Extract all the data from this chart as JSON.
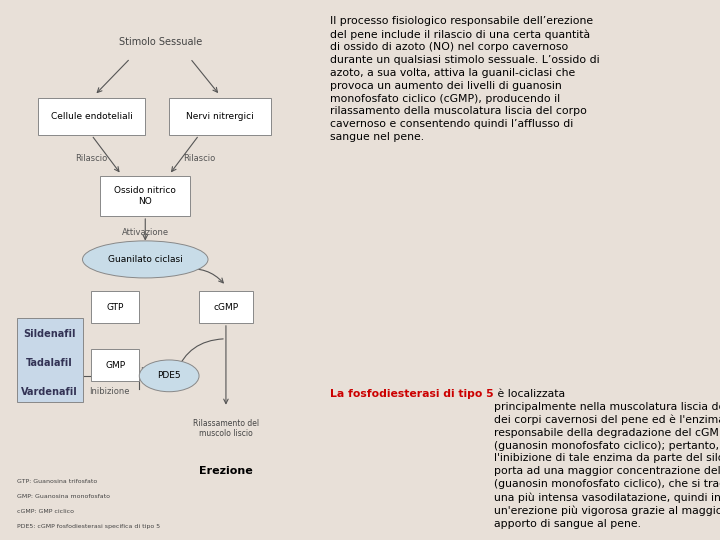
{
  "bg_color": "#e8e0d8",
  "left_bg": "#d4cfc8",
  "right_bg": "#f5e8e0",
  "diagram_title": "Stimolo Sessuale",
  "box1": "Cellule endoteliali",
  "box2": "Nervi nitrergici",
  "label_rilascio1": "Rilascio",
  "label_rilascio2": "Rilascio",
  "box_no": "Ossido nitrico\nNO",
  "label_attivazione": "Attivazione",
  "oval_guanilato": "Guanilato ciclasi",
  "box_gtp": "GTP",
  "box_gmp": "GMP",
  "box_cgmp": "cGMP",
  "oval_pde5": "PDE5",
  "label_inibizione": "Inibizione",
  "label_rilassamento": "Rilassamento del\nmuscolo liscio",
  "label_erezione": "Erezione",
  "drugs": [
    "Sildenafil",
    "Tadalafil",
    "Vardenafil"
  ],
  "footnotes": [
    "GTP: Guanosina trifosfato",
    "GMP: Guanosina monofosfato",
    "cGMP: GMP ciclico",
    "PDE5: cGMP fosfodiesterasi specifica di tipo 5"
  ],
  "paragraph1": "Il processo fisiologico responsabile dell’erezione\ndel pene include il rilascio di una certa quantità\ndi ossido di azoto (NO) nel corpo cavernoso\ndurante un qualsiasi stimolo sessuale. L’ossido di\nazoto, a sua volta, attiva la guanil-ciclasi che\nprovoca un aumento dei livelli di guanosin\nmonofosfato ciclico (cGMP), producendo il\nrilassamento della muscolatura liscia del corpo\ncavernoso e consentendo quindi l’afflusso di\nsangue nel pene.",
  "paragraph2_red": "La fosfodiesterasi di tipo 5",
  "paragraph2_rest": " è localizzata\nprincipalmente nella muscolatura liscia dei vasi\ndei corpi cavernosi del pene ed è l’enzima\nresponsabile della degradazione del cGMP\n(guanosin monofosfato ciclico); pertanto,\nl’inibizione di tale enzima da parte del sildenafil\nporta ad una maggior concentrazione del cGMP\n(guanosin monofosfato ciclico), che si traduce in\nuna più intensa vasodilatazione, quindi in\nun’erezione più vigorosa grazie al maggior\napporto di sangue al pene."
}
